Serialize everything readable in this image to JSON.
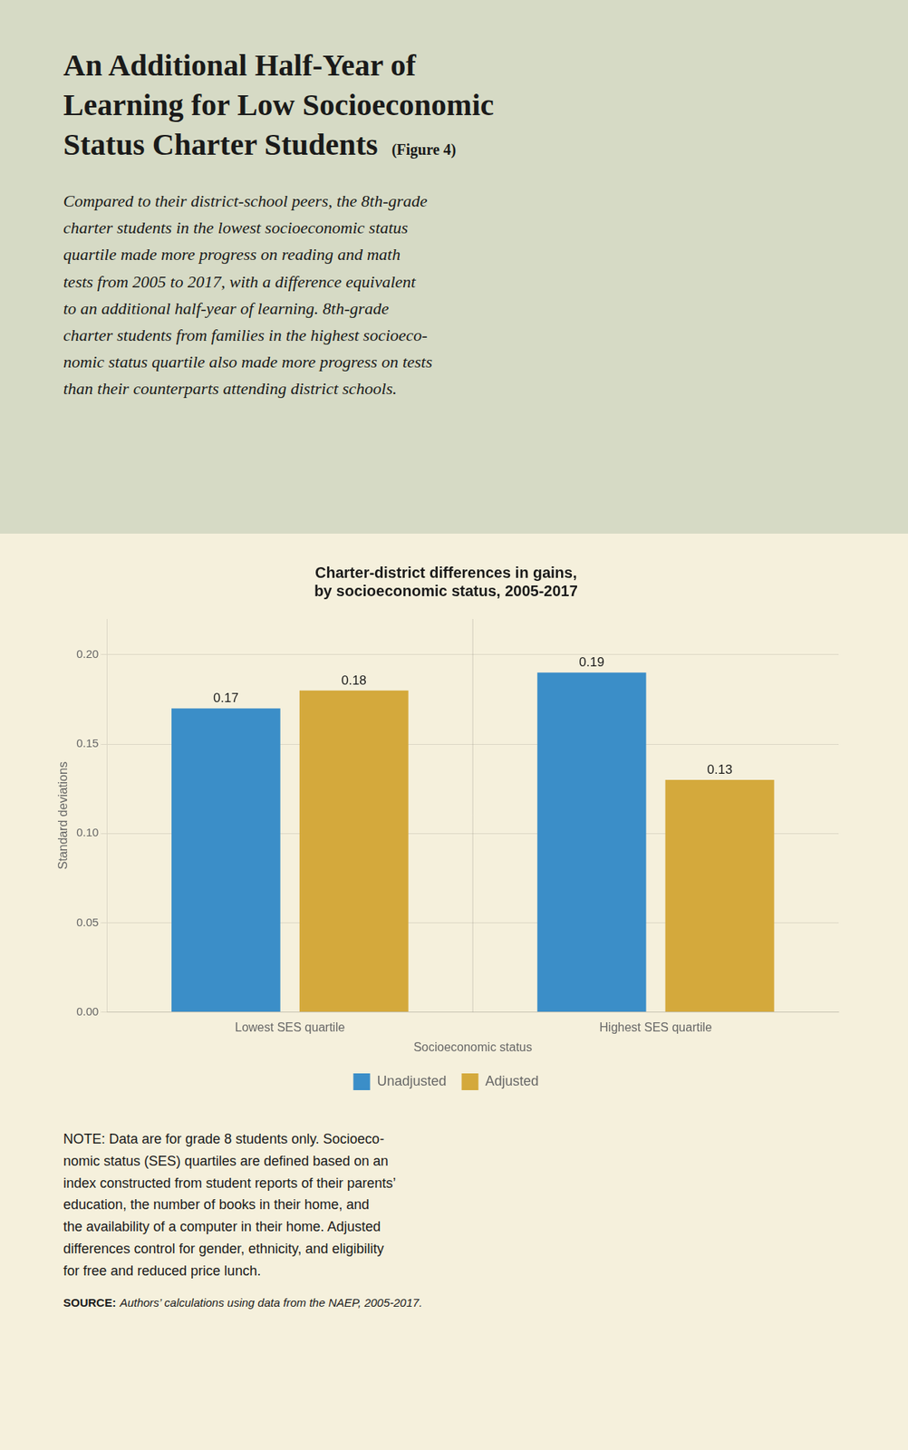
{
  "heading": [
    "An Additional Half-Year of",
    "Learning for Low Socioeconomic",
    "Status Charter Students"
  ],
  "heading_label": "(Figure 4)",
  "subtitle": [
    "Compared to their district-school peers, the 8th-grade",
    "charter students in the lowest socioeconomic status",
    "quartile made more progress on reading and math",
    "tests from 2005 to 2017, with a difference equivalent",
    "to an additional half-year of learning. 8th-grade",
    "charter students from families in the highest socioeco-",
    "nomic status quartile also made more progress on tests",
    "than their counterparts attending district schools."
  ],
  "note": [
    "NOTE: Data are for grade 8 students only. Socioeco-",
    "nomic status (SES) quartiles are defined based on an",
    "index constructed from student reports of their parents’",
    "education, the number of books in their home, and",
    "the availability of a computer in their home. Adjusted",
    "differences control for gender, ethnicity, and eligibility",
    "for free and reduced price lunch."
  ],
  "source": {
    "label": "SOURCE:",
    "text": "Authors’ calculations using data from the NAEP, 2005-2017."
  },
  "chart_data": {
    "type": "bar",
    "title": [
      "Charter-district differences in gains,",
      "by socioeconomic status, 2005-2017"
    ],
    "categories": [
      "Lowest SES quartile",
      "Highest SES quartile"
    ],
    "series": [
      {
        "name": "Unadjusted",
        "color": "#3B8EC8",
        "values": [
          0.17,
          0.19
        ]
      },
      {
        "name": "Adjusted",
        "color": "#D4A93C",
        "values": [
          0.18,
          0.13
        ]
      }
    ],
    "xlabel": "Socioeconomic status",
    "ylabel": "Standard deviations",
    "ylim": [
      0.0,
      0.22
    ],
    "yticks": [
      {
        "value": 0.0,
        "label": "0.00"
      },
      0.05,
      {
        "value": 0.1,
        "label": "0.10"
      },
      0.15,
      {
        "value": 0.2,
        "label": "0.20"
      }
    ],
    "grid": true,
    "legend": "bottom",
    "data_labels": true
  }
}
